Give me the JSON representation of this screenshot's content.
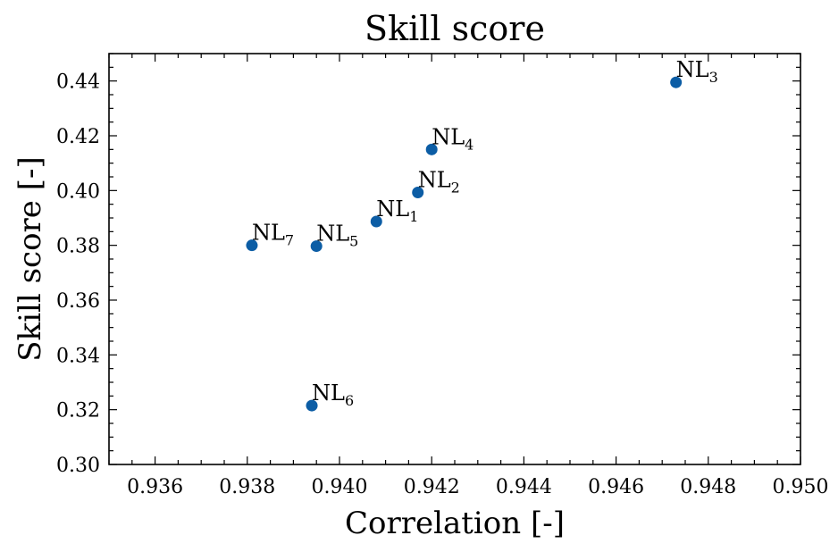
{
  "chart_data": {
    "type": "scatter",
    "title": "Skill score",
    "xlabel": "Correlation [-]",
    "ylabel": "Skill score [-]",
    "xlim": [
      0.935,
      0.95
    ],
    "ylim": [
      0.3,
      0.45
    ],
    "x_ticks": [
      "0.936",
      "0.938",
      "0.940",
      "0.942",
      "0.944",
      "0.946",
      "0.948",
      "0.950"
    ],
    "y_ticks": [
      "0.30",
      "0.32",
      "0.34",
      "0.36",
      "0.38",
      "0.40",
      "0.42",
      "0.44"
    ],
    "marker_color": "#0C5DA5",
    "points": [
      {
        "label": "NL",
        "sub": "1",
        "x": 0.9408,
        "y": 0.3887
      },
      {
        "label": "NL",
        "sub": "2",
        "x": 0.9417,
        "y": 0.3993
      },
      {
        "label": "NL",
        "sub": "3",
        "x": 0.9473,
        "y": 0.4395
      },
      {
        "label": "NL",
        "sub": "4",
        "x": 0.942,
        "y": 0.415
      },
      {
        "label": "NL",
        "sub": "5",
        "x": 0.9395,
        "y": 0.3797
      },
      {
        "label": "NL",
        "sub": "6",
        "x": 0.9394,
        "y": 0.3215
      },
      {
        "label": "NL",
        "sub": "7",
        "x": 0.9381,
        "y": 0.38
      }
    ]
  }
}
